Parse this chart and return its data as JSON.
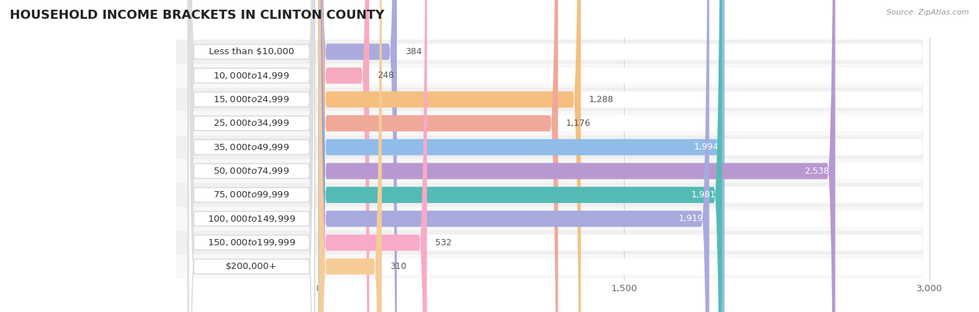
{
  "title": "HOUSEHOLD INCOME BRACKETS IN CLINTON COUNTY",
  "source": "Source: ZipAtlas.com",
  "categories": [
    "Less than $10,000",
    "$10,000 to $14,999",
    "$15,000 to $24,999",
    "$25,000 to $34,999",
    "$35,000 to $49,999",
    "$50,000 to $74,999",
    "$75,000 to $99,999",
    "$100,000 to $149,999",
    "$150,000 to $199,999",
    "$200,000+"
  ],
  "values": [
    384,
    248,
    1288,
    1176,
    1994,
    2538,
    1981,
    1919,
    532,
    310
  ],
  "bar_colors": [
    "#aaaadd",
    "#f5aabf",
    "#f5bf80",
    "#f0a898",
    "#90bce8",
    "#b898d0",
    "#55bab5",
    "#a8aade",
    "#f8aac8",
    "#f5cc98"
  ],
  "xlim": [
    0,
    3000
  ],
  "xticks": [
    0,
    1500,
    3000
  ],
  "background_color": "#f7f7f7",
  "row_bg_even": "#f0f0f0",
  "row_bg_odd": "#fafafa",
  "title_fontsize": 13,
  "label_fontsize": 9.5,
  "value_fontsize": 9
}
